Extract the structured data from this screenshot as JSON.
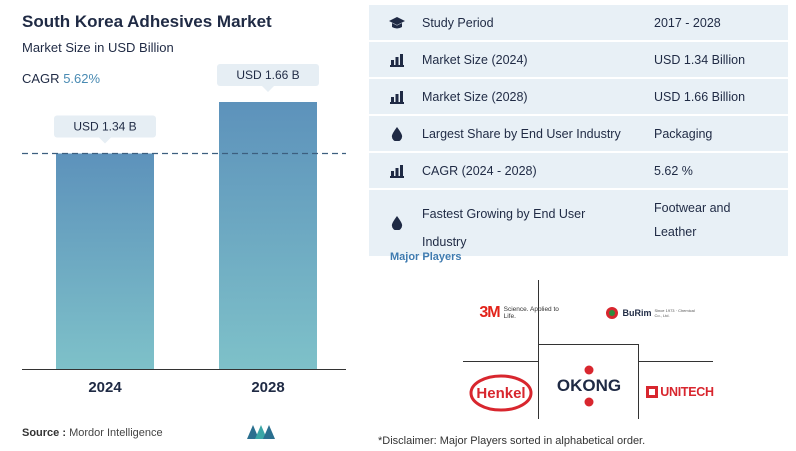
{
  "header": {
    "title": "South Korea Adhesives Market",
    "subtitle": "Market Size in USD Billion",
    "cagr_label": "CAGR",
    "cagr_value": "5.62%"
  },
  "chart_data": {
    "type": "bar",
    "categories": [
      "2024",
      "2028"
    ],
    "values": [
      1.34,
      1.66
    ],
    "data_labels": [
      "USD 1.34 B",
      "USD 1.66 B"
    ],
    "title": "South Korea Adhesives Market",
    "ylabel": "Market Size in USD Billion",
    "ylim": [
      0,
      1.66
    ],
    "colors": [
      "#5d92bb",
      "#7ec1c9"
    ],
    "reference_line": "dashed line at 2024 value"
  },
  "info_table": {
    "rows": [
      {
        "icon": "graduation-cap-icon",
        "label": "Study Period",
        "value": "2017 - 2028"
      },
      {
        "icon": "bar-growth-icon",
        "label": "Market Size (2024)",
        "value": "USD 1.34 Billion"
      },
      {
        "icon": "bar-growth-icon",
        "label": "Market Size (2028)",
        "value": "USD 1.66 Billion"
      },
      {
        "icon": "drop-icon",
        "label": "Largest Share by End User Industry",
        "value": "Packaging"
      },
      {
        "icon": "bar-growth-icon",
        "label": "CAGR (2024 - 2028)",
        "value": "5.62 %"
      },
      {
        "icon": "drop-icon",
        "label": "Fastest Growing by End User Industry",
        "value": "Footwear and Leather"
      }
    ]
  },
  "players": {
    "title": "Major Players",
    "logos": [
      "3M",
      "Science. Applied to Life.",
      "BuRim",
      "Henkel",
      "OKONG",
      "UNITECH"
    ]
  },
  "footer": {
    "source_label": "Source :",
    "source_value": "Mordor Intelligence",
    "disclaimer": "*Disclaimer: Major Players sorted in alphabetical order."
  },
  "colors": {
    "accent": "#4a8bb3",
    "panel_bg": "#e8f0f6",
    "player_title": "#3f7bb0"
  }
}
